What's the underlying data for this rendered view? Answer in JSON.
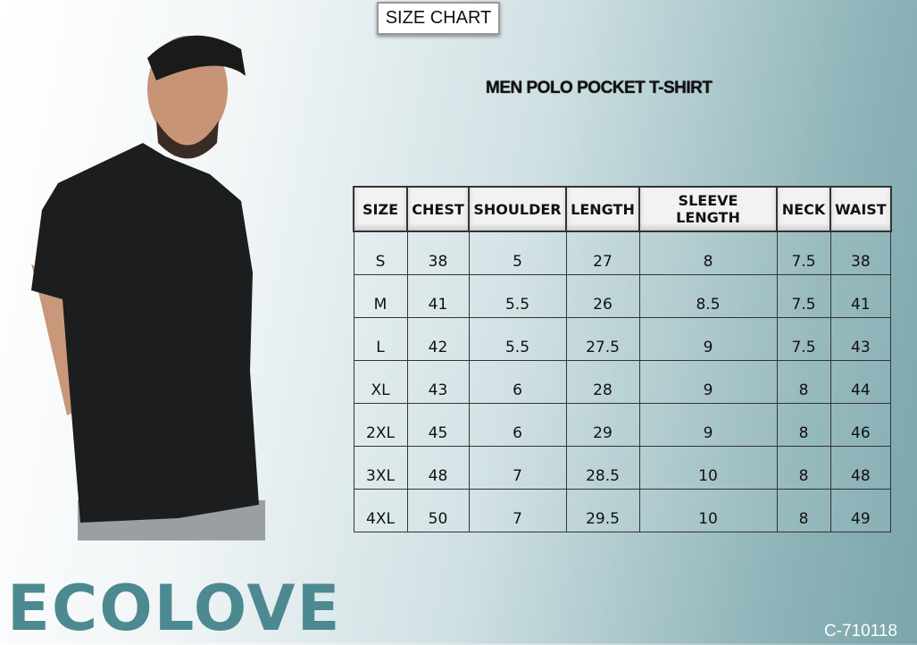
{
  "header": {
    "size_chart_label": "SIZE CHART",
    "product_title": "MEN POLO POCKET T-SHIRT"
  },
  "table": {
    "columns": [
      "SIZE",
      "CHEST",
      "SHOULDER",
      "LENGTH",
      "SLEEVE LENGTH",
      "NECK",
      "WAIST"
    ],
    "rows": [
      [
        "S",
        "38",
        "5",
        "27",
        "8",
        "7.5",
        "38"
      ],
      [
        "M",
        "41",
        "5.5",
        "26",
        "8.5",
        "7.5",
        "41"
      ],
      [
        "L",
        "42",
        "5.5",
        "27.5",
        "9",
        "7.5",
        "43"
      ],
      [
        "XL",
        "43",
        "6",
        "28",
        "9",
        "8",
        "44"
      ],
      [
        "2XL",
        "45",
        "6",
        "29",
        "9",
        "8",
        "46"
      ],
      [
        "3XL",
        "48",
        "7",
        "28.5",
        "10",
        "8",
        "48"
      ],
      [
        "4XL",
        "50",
        "7",
        "29.5",
        "10",
        "8",
        "49"
      ]
    ]
  },
  "brand": {
    "logo_text": "ECOLOVE",
    "color": "#4d8991"
  },
  "product_code": "C-710118"
}
